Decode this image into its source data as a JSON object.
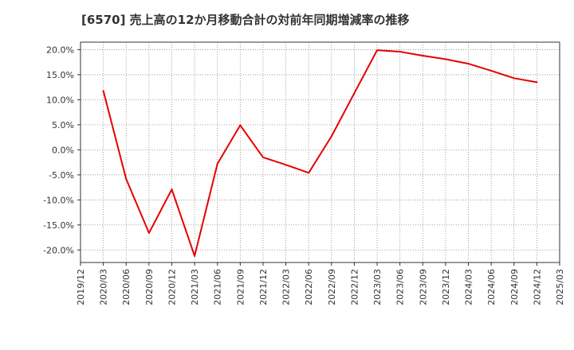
{
  "chart_data": {
    "type": "line",
    "title": "[6570]  売上高の12か月移動合計の対前年同期増減率の推移",
    "xlabel": "",
    "ylabel": "",
    "ylim": [
      -22.5,
      21.5
    ],
    "yticks": [
      20,
      15,
      10,
      5,
      0,
      -5,
      -10,
      -15,
      -20
    ],
    "ytick_labels": [
      "20.0%",
      "15.0%",
      "10.0%",
      "5.0%",
      "0.0%",
      "-5.0%",
      "-10.0%",
      "-15.0%",
      "-20.0%"
    ],
    "x_ticks": [
      "2019/12",
      "2020/03",
      "2020/06",
      "2020/09",
      "2020/12",
      "2021/03",
      "2021/06",
      "2021/09",
      "2021/12",
      "2022/03",
      "2022/06",
      "2022/09",
      "2022/12",
      "2023/03",
      "2023/06",
      "2023/09",
      "2023/12",
      "2024/03",
      "2024/06",
      "2024/09",
      "2024/12",
      "2025/03"
    ],
    "grid": true,
    "series": [
      {
        "name": "増減率",
        "color": "#e60000",
        "x": [
          "2020/03",
          "2020/06",
          "2020/09",
          "2020/12",
          "2021/03",
          "2021/06",
          "2021/09",
          "2021/12",
          "2022/03",
          "2022/06",
          "2022/09",
          "2022/12",
          "2023/03",
          "2023/06",
          "2023/09",
          "2023/12",
          "2024/03",
          "2024/06",
          "2024/09",
          "2024/12"
        ],
        "values": [
          11.8,
          -5.8,
          -16.6,
          -7.9,
          -21.2,
          -2.8,
          4.9,
          -1.5,
          -3.0,
          -4.6,
          2.7,
          11.3,
          19.9,
          19.6,
          18.8,
          18.1,
          17.2,
          15.8,
          14.3,
          13.5
        ]
      }
    ]
  }
}
